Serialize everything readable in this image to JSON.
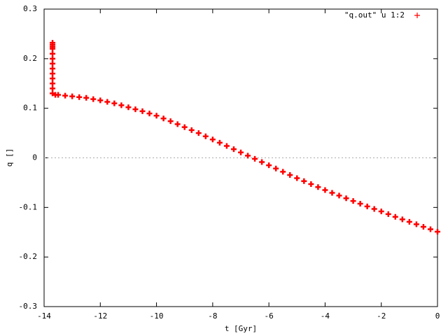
{
  "chart_data": {
    "type": "scatter",
    "xlabel": "t [Gyr]",
    "ylabel": "q []",
    "xlim": [
      -14,
      0
    ],
    "ylim": [
      -0.3,
      0.3
    ],
    "xticks": [
      -14,
      -12,
      -10,
      -8,
      -6,
      -4,
      -2,
      0
    ],
    "yticks": [
      -0.3,
      -0.2,
      -0.1,
      0,
      0.1,
      0.2,
      0.3
    ],
    "zero_line": true,
    "legend": "top-right",
    "series": [
      {
        "name": "\"q.out\" u 1:2",
        "color": "#ff0000",
        "x": [
          -13.7,
          -13.7,
          -13.7,
          -13.7,
          -13.7,
          -13.7,
          -13.7,
          -13.7,
          -13.7,
          -13.7,
          -13.7,
          -13.7,
          -13.7,
          -13.6,
          -13.5,
          -13.25,
          -13,
          -12.75,
          -12.5,
          -12.25,
          -12,
          -11.75,
          -11.5,
          -11.25,
          -11,
          -10.75,
          -10.5,
          -10.25,
          -10,
          -9.75,
          -9.5,
          -9.25,
          -9,
          -8.75,
          -8.5,
          -8.25,
          -8,
          -7.75,
          -7.5,
          -7.25,
          -7,
          -6.75,
          -6.5,
          -6.25,
          -6,
          -5.75,
          -5.5,
          -5.25,
          -5,
          -4.75,
          -4.5,
          -4.25,
          -4,
          -3.75,
          -3.5,
          -3.25,
          -3,
          -2.75,
          -2.5,
          -2.25,
          -2,
          -1.75,
          -1.5,
          -1.25,
          -1,
          -0.75,
          -0.5,
          -0.25,
          0
        ],
        "values": [
          0.232,
          0.228,
          0.224,
          0.22,
          0.21,
          0.2,
          0.19,
          0.18,
          0.17,
          0.16,
          0.15,
          0.14,
          0.13,
          0.127,
          0.127,
          0.1255,
          0.124,
          0.1225,
          0.121,
          0.1185,
          0.116,
          0.113,
          0.11,
          0.106,
          0.102,
          0.098,
          0.094,
          0.0895,
          0.085,
          0.0795,
          0.074,
          0.068,
          0.062,
          0.056,
          0.05,
          0.0435,
          0.037,
          0.0305,
          0.024,
          0.0175,
          0.011,
          0.0045,
          -0.002,
          -0.0085,
          -0.015,
          -0.0215,
          -0.028,
          -0.0345,
          -0.041,
          -0.047,
          -0.053,
          -0.059,
          -0.065,
          -0.0705,
          -0.076,
          -0.0815,
          -0.087,
          -0.0925,
          -0.098,
          -0.103,
          -0.108,
          -0.1135,
          -0.119,
          -0.124,
          -0.129,
          -0.134,
          -0.139,
          -0.144,
          -0.149
        ]
      }
    ]
  }
}
